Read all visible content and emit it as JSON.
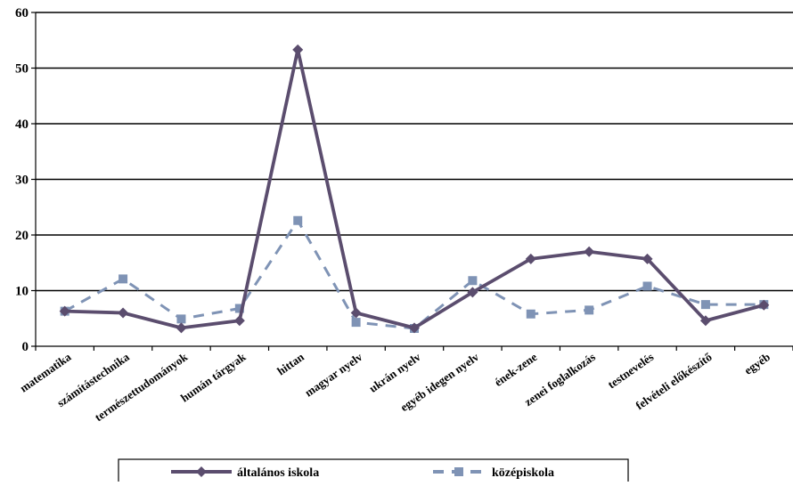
{
  "chart_data": {
    "type": "line",
    "categories": [
      "matematika",
      "számítástechnika",
      "természettudományok",
      "humán tárgyak",
      "hittan",
      "magyar nyelv",
      "ukrán nyelv",
      "egyéb idegen nyelv",
      "ének-zene",
      "zenei foglalkozás",
      "testnevelés",
      "felvételi előkészítő",
      "egyéb"
    ],
    "series": [
      {
        "name": "általános iskola",
        "color": "#5b4d6e",
        "marker": "diamond",
        "dash": "solid",
        "values": [
          6.3,
          6.0,
          3.3,
          4.6,
          53.3,
          6.0,
          3.3,
          9.7,
          15.7,
          17.0,
          15.7,
          4.6,
          7.4
        ]
      },
      {
        "name": "középiskola",
        "color": "#7f93b5",
        "marker": "square",
        "dash": "dashed",
        "values": [
          6.3,
          12.1,
          4.9,
          6.8,
          22.6,
          4.3,
          3.2,
          11.8,
          5.8,
          6.5,
          10.8,
          7.5,
          7.5
        ]
      }
    ],
    "ylim": [
      0,
      60
    ],
    "yticks": [
      0,
      10,
      20,
      30,
      40,
      50,
      60
    ],
    "grid": true,
    "legend": "bottom",
    "title": "",
    "xlabel": "",
    "ylabel": ""
  }
}
